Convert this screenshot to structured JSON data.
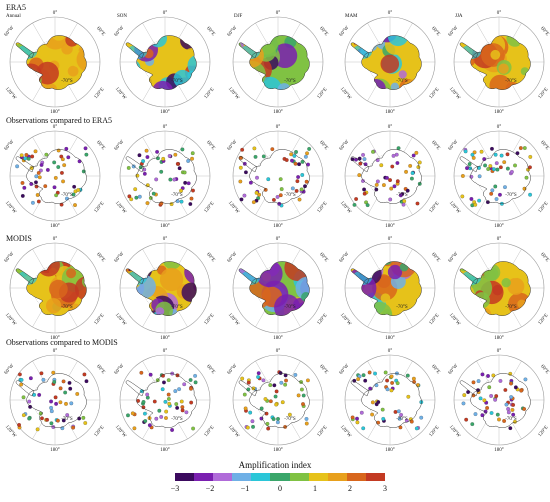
{
  "row_titles": [
    "ERA5",
    "Observations compared to ERA5",
    "MODIS",
    "Observations compared to MODIS"
  ],
  "column_labels": [
    "Annual",
    "SON",
    "DJF",
    "MAM",
    "JJA"
  ],
  "grid_labels": {
    "top": "0°",
    "bottom": "180°",
    "upper_left": "60°W",
    "lower_left": "120°W",
    "upper_right": "60°E",
    "lower_right": "120°E",
    "lat_inner": "-70°S"
  },
  "legend": {
    "title": "Amplification index",
    "ticks": [
      "−3",
      "−2",
      "−1",
      "0",
      "1",
      "2",
      "3"
    ],
    "colors": [
      "#3b0a5e",
      "#7a1fb0",
      "#b06bd9",
      "#6fb0e6",
      "#2bc6d8",
      "#3aa66a",
      "#80c243",
      "#e6c21a",
      "#e8a01c",
      "#d8661c",
      "#c33a22"
    ]
  },
  "colors": {
    "continent_outline": "#333333",
    "graticule": "#999999"
  }
}
